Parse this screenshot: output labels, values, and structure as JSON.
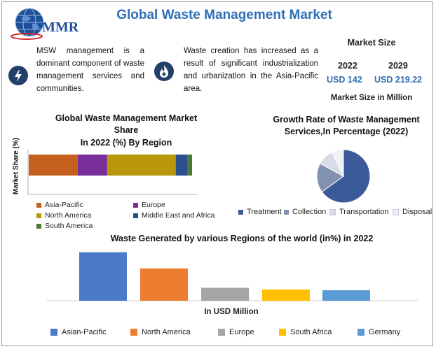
{
  "header": {
    "title": "Global Waste Management Market",
    "logo_text": "MMR"
  },
  "info": [
    {
      "icon": "bolt-icon",
      "text": "MSW management is a dominant component of waste management services and communities."
    },
    {
      "icon": "flame-icon",
      "text": "Waste creation has increased as a result of significant industrialization and urbanization in the Asia-Pacific area."
    }
  ],
  "market_size": {
    "title": "Market Size",
    "year_a": "2022",
    "value_a": "USD 142",
    "year_b": "2029",
    "value_b": "USD 219.22",
    "footer": "Market Size in Million"
  },
  "colors": {
    "title_blue": "#2f6fb5",
    "asia_pacific": "#c5601c",
    "europe": "#7a2e9a",
    "north_america": "#b8970a",
    "middle_east_africa": "#2b4f8e",
    "south_america": "#4a7a35",
    "treatment": "#3a5a9a",
    "collection": "#8192b0",
    "transportation": "#d6dbe5",
    "disposal": "#eef0f4",
    "b_asian_pacific": "#4a7ac8",
    "b_north_america": "#ed7d31",
    "b_europe": "#a5a5a5",
    "b_south_africa": "#ffc000",
    "b_germany": "#5b9bd5"
  },
  "chart_data": [
    {
      "type": "bar",
      "orientation": "horizontal-stacked",
      "title": "Global Waste Management Market Share",
      "subtitle": "In 2022 (%) By Region",
      "ylabel": "Market Share (%)",
      "categories": [
        ""
      ],
      "series": [
        {
          "name": "Asia-Pacific",
          "values": [
            30
          ]
        },
        {
          "name": "Europe",
          "values": [
            18
          ]
        },
        {
          "name": "North America",
          "values": [
            42
          ]
        },
        {
          "name": "Middle East and Africa",
          "values": [
            7
          ]
        },
        {
          "name": "South America",
          "values": [
            3
          ]
        }
      ],
      "legend": "bottom"
    },
    {
      "type": "pie",
      "title": "Growth Rate of Waste Management Services,In Percentage (2022)",
      "labels": [
        "Treatment",
        "Collection",
        "Transportation",
        "Disposal"
      ],
      "values": [
        65,
        18,
        10,
        7
      ],
      "legend": "bottom"
    },
    {
      "type": "bar",
      "title": "Waste Generated by various Regions of the world (in%) in 2022",
      "xlabel": "In USD Million",
      "categories": [
        "Asian-Pacific",
        "North America",
        "Europe",
        "South Africa",
        "Germany"
      ],
      "values": [
        30,
        20,
        8,
        7,
        6.5
      ],
      "ylim": [
        0,
        32
      ],
      "legend": "bottom"
    }
  ]
}
